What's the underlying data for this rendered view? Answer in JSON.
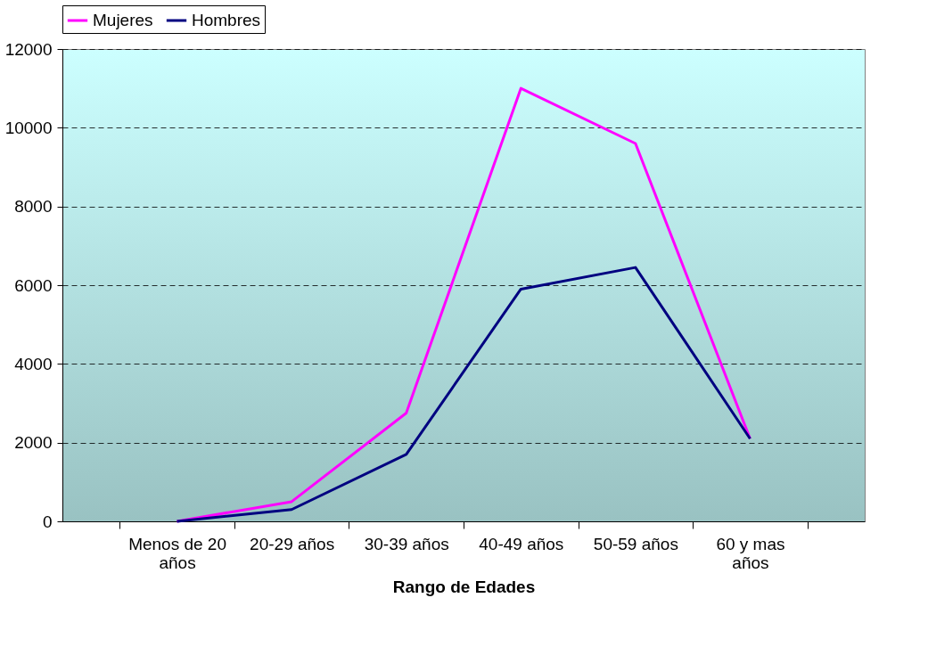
{
  "chart_data": {
    "type": "line",
    "xlabel": "Rango de Edades",
    "categories": [
      "Menos de 20 años",
      "20-29 años",
      "30-39 años",
      "40-49 años",
      "50-59 años",
      "60 y mas años"
    ],
    "series": [
      {
        "name": "Mujeres",
        "color": "#ff00ff",
        "values": [
          0,
          500,
          2750,
          11000,
          9600,
          2100
        ]
      },
      {
        "name": "Hombres",
        "color": "#000080",
        "values": [
          0,
          300,
          1700,
          5900,
          6450,
          2100
        ]
      }
    ],
    "ylim": [
      0,
      12000
    ],
    "yticks": [
      0,
      2000,
      4000,
      6000,
      8000,
      10000,
      12000
    ],
    "grid": "y",
    "legend": "top",
    "line_style": "solid",
    "marker": "none"
  }
}
